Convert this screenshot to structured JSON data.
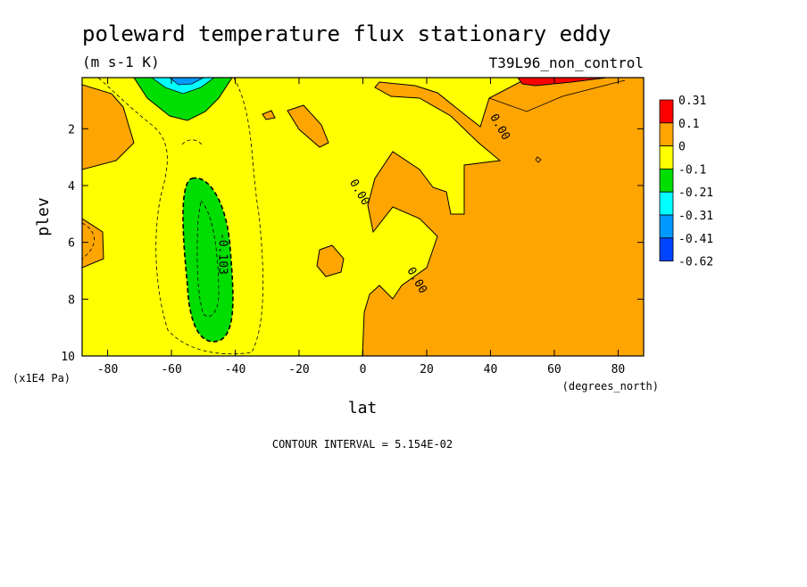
{
  "chart_data": {
    "type": "heatmap",
    "title": "poleward temperature flux stationary eddy",
    "units": "(m s-1 K)",
    "dataset": "T39L96_non_control",
    "xlabel": "lat",
    "ylabel": "plev",
    "x_units": "(degrees_north)",
    "y_units": "(x1E4 Pa)",
    "xlim": [
      -88,
      88
    ],
    "ylim": [
      10,
      0.2
    ],
    "x_ticks": [
      -80,
      -60,
      -40,
      -20,
      0,
      20,
      40,
      60,
      80
    ],
    "y_ticks": [
      2,
      4,
      6,
      8,
      10
    ],
    "contour_interval_text": "CONTOUR INTERVAL = 5.154E-02",
    "contour_labels": [
      {
        "text": "0.00",
        "x": 42,
        "y": 2.0
      },
      {
        "text": "0.00",
        "x": -2,
        "y": 4.3
      },
      {
        "text": "0.00",
        "x": 16,
        "y": 7.4
      },
      {
        "text": "-0.103",
        "x": -45,
        "y": 6.4
      }
    ],
    "colorbar": {
      "levels": [
        "0.31",
        "0.1",
        "0",
        "-0.1",
        "-0.21",
        "-0.31",
        "-0.41",
        "-0.62"
      ],
      "colors": [
        "#ff0000",
        "#ffa500",
        "#ffff00",
        "#00dd00",
        "#00ffff",
        "#0099ff",
        "#0044ff"
      ]
    }
  }
}
